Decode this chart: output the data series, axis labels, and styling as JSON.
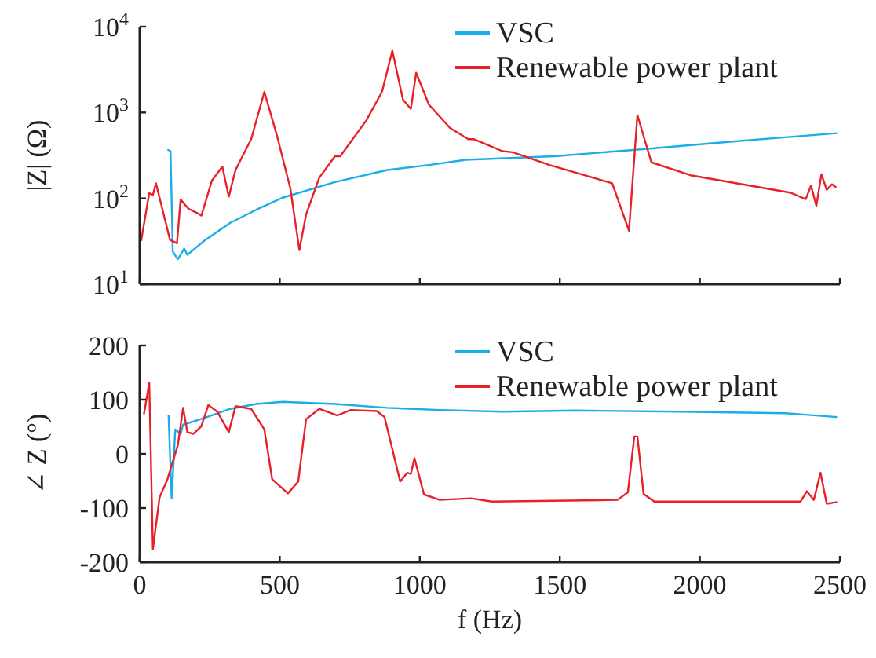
{
  "chart_data": [
    {
      "type": "line",
      "ylabel": "|Z| (Ω)",
      "log": true,
      "xlim": [
        0,
        2500
      ],
      "xticks": [
        0,
        500,
        1000,
        1500,
        2000,
        2500
      ],
      "ylim": [
        10,
        10000
      ],
      "yticks": [
        {
          "value": 10,
          "label": "10$^{1}$"
        },
        {
          "value": 100,
          "label": "10$^{2}$"
        },
        {
          "value": 1000,
          "label": "10$^{3}$"
        },
        {
          "value": 10000,
          "label": "10$^{4}$"
        }
      ],
      "tick_labels": "y",
      "legend": "top right",
      "grid": false,
      "series": [
        {
          "name": "VSC",
          "color": "#1aaee8",
          "x": [
            99,
            110,
            118,
            136,
            159,
            170,
            230,
            323,
            417,
            510,
            697,
            884,
            1033,
            1164,
            1481,
            1780,
            2117,
            2304,
            2490
          ],
          "values": [
            370,
            355,
            24,
            19.6,
            26,
            22,
            32,
            52,
            74,
            102,
            155,
            214,
            245,
            282,
            310,
            370,
            460,
            515,
            575
          ]
        },
        {
          "name": "Renewable power plant",
          "color": "#e8202a",
          "x": [
            5,
            34,
            47,
            58,
            108,
            133,
            146,
            174,
            211,
            220,
            258,
            295,
            318,
            342,
            398,
            445,
            491,
            538,
            570,
            594,
            641,
            697,
            716,
            809,
            865,
            902,
            940,
            968,
            987,
            1033,
            1108,
            1173,
            1192,
            1295,
            1332,
            1463,
            1687,
            1747,
            1777,
            1827,
            1967,
            2322,
            2378,
            2397,
            2416,
            2434,
            2453,
            2472,
            2487
          ],
          "values": [
            32,
            115,
            110,
            150,
            33,
            30,
            97,
            76,
            66,
            63,
            162,
            234,
            105,
            214,
            490,
            1740,
            525,
            130,
            25,
            65,
            174,
            310,
            310,
            810,
            1740,
            5250,
            1410,
            1100,
            2900,
            1230,
            660,
            490,
            490,
            355,
            345,
            245,
            150,
            42,
            930,
            263,
            186,
            117,
            98,
            141,
            82,
            191,
            126,
            146,
            134
          ]
        }
      ]
    },
    {
      "type": "line",
      "ylabel": "∠ Z (°)",
      "xlabel": "f (Hz)",
      "xlim": [
        0,
        2500
      ],
      "xticks": [
        0,
        500,
        1000,
        1500,
        2000,
        2500
      ],
      "ylim": [
        -200,
        200
      ],
      "yticks": [
        -200,
        -100,
        0,
        100,
        200
      ],
      "legend": "top right",
      "grid": false,
      "series": [
        {
          "name": "VSC",
          "color": "#1aaee8",
          "x": [
            103,
            114,
            127,
            146,
            155,
            230,
            323,
            417,
            510,
            697,
            884,
            1071,
            1295,
            1557,
            1930,
            2304,
            2490
          ],
          "values": [
            71,
            -82,
            45,
            37,
            54,
            66,
            83,
            92,
            96,
            92,
            85,
            81,
            78,
            80,
            78,
            75,
            68
          ]
        },
        {
          "name": "Renewable power plant",
          "color": "#e8202a",
          "x": [
            15,
            34,
            47,
            71,
            99,
            136,
            155,
            170,
            192,
            220,
            245,
            277,
            318,
            342,
            398,
            445,
            473,
            529,
            566,
            594,
            641,
            706,
            753,
            846,
            874,
            930,
            955,
            968,
            981,
            1015,
            1071,
            1183,
            1257,
            1706,
            1743,
            1766,
            1777,
            1799,
            1837,
            2360,
            2382,
            2407,
            2431,
            2453,
            2490
          ],
          "values": [
            73,
            131,
            -176,
            -80,
            -47,
            16,
            85,
            40,
            37,
            51,
            90,
            78,
            40,
            88,
            83,
            45,
            -47,
            -73,
            -51,
            64,
            83,
            71,
            81,
            79,
            68,
            -51,
            -35,
            -37,
            -8,
            -75,
            -85,
            -82,
            -88,
            -85,
            -71,
            32,
            32,
            -74,
            -88,
            -88,
            -69,
            -85,
            -35,
            -92,
            -89
          ]
        }
      ]
    }
  ]
}
